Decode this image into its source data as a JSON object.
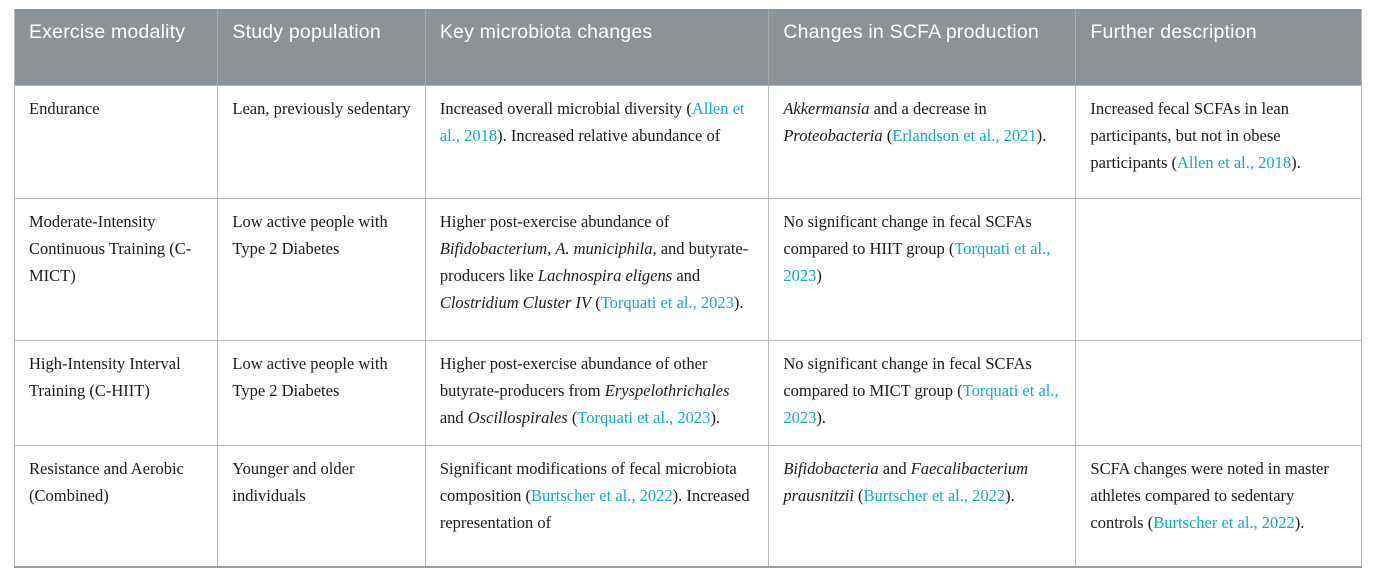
{
  "colors": {
    "header_bg": "#8d9296",
    "header_text": "#ffffff",
    "body_text": "#1b1b1b",
    "link": "#10aac5",
    "grid_border": "#b6bab9",
    "bottom_border": "#9ba19f"
  },
  "table": {
    "columns": [
      {
        "label": "Exercise modality"
      },
      {
        "label": "Study population"
      },
      {
        "label": "Key microbiota changes"
      },
      {
        "label": "Changes in SCFA production"
      },
      {
        "label": "Further description"
      }
    ],
    "rows": [
      {
        "cells": [
          [
            {
              "t": "Endurance"
            }
          ],
          [
            {
              "t": "Lean, previously sedentary"
            }
          ],
          [
            {
              "t": "Increased overall microbial diversity ("
            },
            {
              "t": "Allen et al., 2018",
              "link": true
            },
            {
              "t": "). Increased relative abundance of"
            }
          ],
          [
            {
              "t": "Akkermansia",
              "i": true
            },
            {
              "t": " and a decrease in "
            },
            {
              "t": "Proteobacteria",
              "i": true
            },
            {
              "t": " ("
            },
            {
              "t": "Erlandson et al., 2021",
              "link": true
            },
            {
              "t": ")."
            }
          ],
          [
            {
              "t": "Increased fecal SCFAs in lean participants, but not in obese participants ("
            },
            {
              "t": "Allen et al., 2018",
              "link": true
            },
            {
              "t": ")."
            }
          ]
        ]
      },
      {
        "cells": [
          [
            {
              "t": "Moderate-Intensity Continuous Training (C-MICT)"
            }
          ],
          [
            {
              "t": "Low active people with Type 2 Diabetes"
            }
          ],
          [
            {
              "t": "Higher post-exercise abundance of "
            },
            {
              "t": "Bifidobacterium",
              "i": true
            },
            {
              "t": ", "
            },
            {
              "t": "A. municiphila",
              "i": true
            },
            {
              "t": ", and butyrate-producers like "
            },
            {
              "t": "Lachnospira eligens",
              "i": true
            },
            {
              "t": " and "
            },
            {
              "t": "Clostridium Cluster IV",
              "i": true
            },
            {
              "t": " ("
            },
            {
              "t": "Torquati et al., 2023",
              "link": true
            },
            {
              "t": ")."
            }
          ],
          [
            {
              "t": "No significant change in fecal SCFAs compared to HIIT group ("
            },
            {
              "t": "Torquati et al., 2023",
              "link": true
            },
            {
              "t": ")"
            }
          ],
          []
        ]
      },
      {
        "cells": [
          [
            {
              "t": "High-Intensity Interval Training (C-HIIT)"
            }
          ],
          [
            {
              "t": "Low active people with Type 2 Diabetes"
            }
          ],
          [
            {
              "t": "Higher post-exercise abundance of other butyrate-producers from "
            },
            {
              "t": "Eryspelothrichales",
              "i": true
            },
            {
              "t": " and "
            },
            {
              "t": "Oscillospirales",
              "i": true
            },
            {
              "t": " ("
            },
            {
              "t": "Torquati et al., 2023",
              "link": true
            },
            {
              "t": ")."
            }
          ],
          [
            {
              "t": "No significant change in fecal SCFAs compared to MICT group ("
            },
            {
              "t": "Torquati et al., 2023",
              "link": true
            },
            {
              "t": ")."
            }
          ],
          []
        ]
      },
      {
        "cells": [
          [
            {
              "t": "Resistance and Aerobic (Combined)"
            }
          ],
          [
            {
              "t": "Younger and older individuals"
            }
          ],
          [
            {
              "t": "Significant modifications of fecal microbiota composition ("
            },
            {
              "t": "Burtscher et al., 2022",
              "link": true
            },
            {
              "t": "). Increased representation of"
            }
          ],
          [
            {
              "t": "Bifidobacteria",
              "i": true
            },
            {
              "t": " and "
            },
            {
              "t": "Faecalibacterium prausnitzii",
              "i": true
            },
            {
              "t": " ("
            },
            {
              "t": "Burtscher et al., 2022",
              "link": true
            },
            {
              "t": ")."
            }
          ],
          [
            {
              "t": "SCFA changes were noted in master athletes compared to sedentary controls ("
            },
            {
              "t": "Burtscher et al., 2022",
              "link": true
            },
            {
              "t": ")."
            }
          ]
        ]
      }
    ]
  }
}
